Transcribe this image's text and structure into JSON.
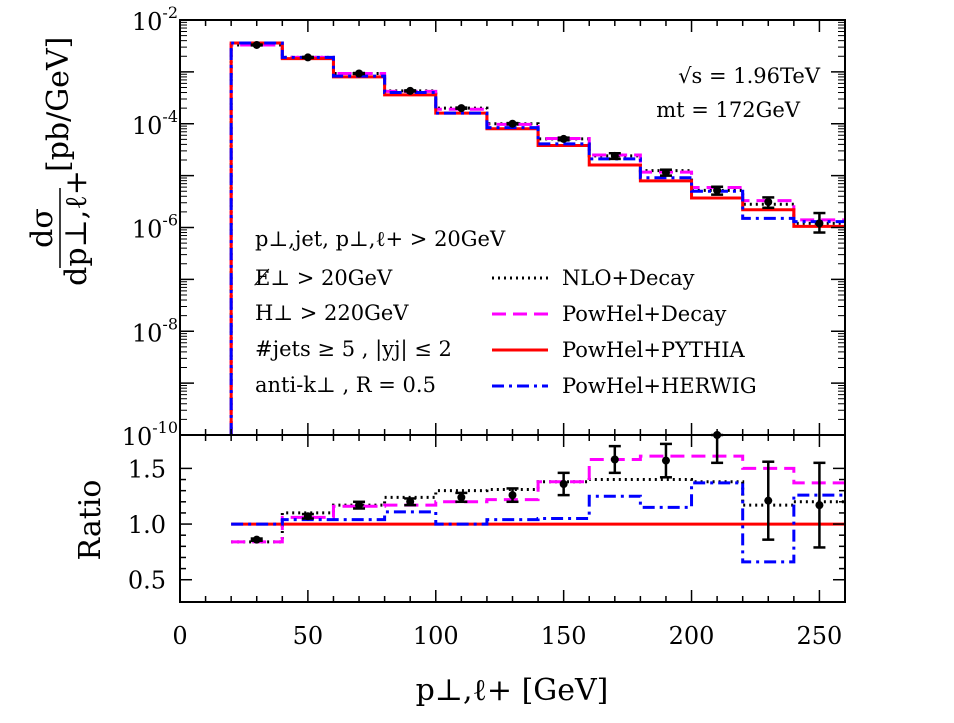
{
  "chart_data": [
    {
      "type": "line",
      "subtype": "step-histogram",
      "ylabel": "dσ/dp⊥,ℓ+ [pb/GeV]",
      "yscale": "log",
      "xlim": [
        0,
        260
      ],
      "ylim_exponent": [
        -10,
        -2
      ],
      "y_tick_exponents": [
        -10,
        -8,
        -6,
        -4,
        -2
      ],
      "annotations_right": [
        "√s = 1.96TeV",
        "mt = 172GeV"
      ],
      "cuts": [
        "p⊥,jet, p⊥,ℓ+ > 20GeV",
        "E̸⊥ > 20GeV",
        "H⊥ > 220GeV",
        "#jets ≥ 5 , |yj| ≤ 2",
        "anti-k⊥ , R = 0.5"
      ],
      "bin_edges": [
        20,
        40,
        60,
        80,
        100,
        120,
        140,
        160,
        180,
        200,
        220,
        240,
        260
      ],
      "series": [
        {
          "name": "NLO+Decay",
          "color": "#000000",
          "dash": "dotted",
          "values": [
            0.0033,
            0.0019,
            0.00093,
            0.00043,
            0.0002,
            0.0001,
            5.1e-05,
            2.4e-05,
            1.25e-05,
            5.2e-06,
            2.8e-06,
            1.2e-06
          ]
        },
        {
          "name": "PowHel+Decay",
          "color": "#ff00ff",
          "dash": "dashed",
          "values": [
            0.0033,
            0.0019,
            0.00093,
            0.00042,
            0.00019,
            9.7e-05,
            5.2e-05,
            2.5e-05,
            1.17e-05,
            5.9e-06,
            3.3e-06,
            1.4e-06
          ]
        },
        {
          "name": "PowHel+PYTHIA",
          "color": "#ff0000",
          "dash": "solid",
          "values": [
            0.0036,
            0.0018,
            0.0008,
            0.00036,
            0.00016,
            8e-05,
            3.8e-05,
            1.6e-05,
            7.9e-06,
            3.7e-06,
            2.2e-06,
            1.05e-06
          ]
        },
        {
          "name": "PowHel+HERWIG",
          "color": "#0000ff",
          "dash": "dashdot",
          "values": [
            0.0036,
            0.0019,
            0.00083,
            0.0004,
            0.00016,
            8.4e-05,
            4.1e-05,
            2.1e-05,
            9.1e-06,
            5e-06,
            1.5e-06,
            1.3e-06
          ]
        }
      ],
      "data_points": {
        "x": [
          30,
          50,
          70,
          90,
          110,
          130,
          150,
          170,
          190,
          210,
          230,
          250
        ],
        "y": [
          0.0033,
          0.0019,
          0.00093,
          0.00043,
          0.0002,
          0.0001,
          5.1e-05,
          2.4e-05,
          1.15e-05,
          5.2e-06,
          3.1e-06,
          1.2e-06
        ],
        "err_lo": [
          6e-05,
          4e-05,
          2e-05,
          1e-05,
          5e-06,
          3e-06,
          3e-06,
          3e-06,
          1.5e-06,
          9e-07,
          7e-07,
          4e-07
        ],
        "err_hi": [
          6e-05,
          4e-05,
          2e-05,
          1e-05,
          5e-06,
          3e-06,
          3e-06,
          3e-06,
          1.5e-06,
          9e-07,
          7e-07,
          7e-07
        ]
      }
    },
    {
      "type": "line",
      "subtype": "step-histogram",
      "xlabel": "p⊥,ℓ+ [GeV]",
      "ylabel": "Ratio",
      "xlim": [
        0,
        260
      ],
      "ylim": [
        0.3,
        1.8
      ],
      "x_ticks": [
        "0",
        "50",
        "100",
        "150",
        "200",
        "250"
      ],
      "y_ticks": [
        "0.5",
        "1.0",
        "1.5"
      ],
      "bin_edges": [
        20,
        40,
        60,
        80,
        100,
        120,
        140,
        160,
        180,
        200,
        220,
        240,
        260
      ],
      "series": [
        {
          "name": "NLO+Decay",
          "color": "#000000",
          "dash": "dotted",
          "values": [
            0.84,
            1.1,
            1.17,
            1.24,
            1.3,
            1.31,
            1.38,
            1.4,
            1.4,
            1.38,
            1.17,
            1.2
          ]
        },
        {
          "name": "PowHel+Decay",
          "color": "#ff00ff",
          "dash": "dashed",
          "values": [
            0.84,
            1.06,
            1.16,
            1.17,
            1.2,
            1.22,
            1.38,
            1.58,
            1.61,
            1.61,
            1.5,
            1.37
          ]
        },
        {
          "name": "PowHel+PYTHIA",
          "color": "#ff0000",
          "dash": "solid",
          "values": [
            1.0,
            1.0,
            1.0,
            1.0,
            1.0,
            1.0,
            1.0,
            1.0,
            1.0,
            1.0,
            1.0,
            1.0
          ]
        },
        {
          "name": "PowHel+HERWIG",
          "color": "#0000ff",
          "dash": "dashdot",
          "values": [
            1.0,
            1.04,
            1.04,
            1.11,
            1.0,
            1.04,
            1.05,
            1.25,
            1.15,
            1.37,
            0.66,
            1.26
          ]
        }
      ],
      "data_points": {
        "x": [
          30,
          50,
          70,
          90,
          110,
          130,
          150,
          170,
          190,
          210,
          230,
          250
        ],
        "y": [
          0.86,
          1.07,
          1.17,
          1.2,
          1.24,
          1.26,
          1.36,
          1.58,
          1.57,
          1.85,
          1.21,
          1.17
        ],
        "err": [
          0.01,
          0.02,
          0.03,
          0.03,
          0.04,
          0.06,
          0.1,
          0.12,
          0.15,
          0.3,
          0.35,
          0.38
        ]
      }
    }
  ]
}
